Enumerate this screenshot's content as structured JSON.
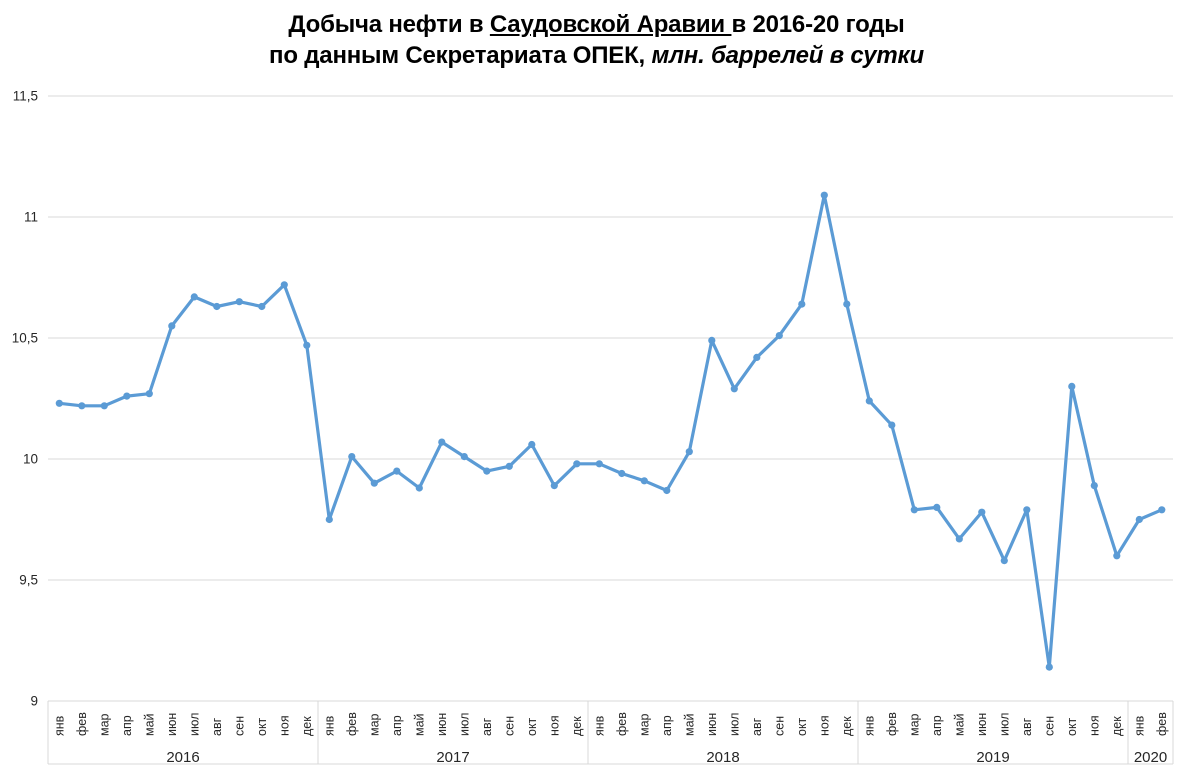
{
  "title": {
    "line1_part1": "Добыча нефти в ",
    "line1_part2_underlined": "Саудовской Аравии ",
    "line1_part3": "в 2016-20 годы",
    "line2_part1": "по данным Секретариата ОПЕК",
    "line2_part2": ", ",
    "line2_part3_italic": "млн. баррелей в сутки"
  },
  "chart_data": {
    "type": "line",
    "title": "Добыча нефти в Саудовской Аравии в 2016-20 годы по данным Секретариата ОПЕК, млн. баррелей в сутки",
    "ylabel": "млн. баррелей в сутки",
    "ylim": [
      9,
      11.5
    ],
    "y_ticks": [
      9,
      9.5,
      10,
      10.5,
      11,
      11.5
    ],
    "y_tick_labels": [
      "9",
      "9,5",
      "10",
      "10,5",
      "11",
      "11,5"
    ],
    "grid": true,
    "legend_position": "none",
    "line_color": "#5B9BD5",
    "grid_color": "#D9D9D9",
    "axis_text_color": "#262626",
    "groups": [
      {
        "year": "2016",
        "months": [
          "янв",
          "фев",
          "мар",
          "апр",
          "май",
          "июн",
          "июл",
          "авг",
          "сен",
          "окт",
          "ноя",
          "дек"
        ],
        "values": [
          10.23,
          10.22,
          10.22,
          10.26,
          10.27,
          10.55,
          10.67,
          10.63,
          10.65,
          10.63,
          10.72,
          10.47
        ]
      },
      {
        "year": "2017",
        "months": [
          "янв",
          "фев",
          "мар",
          "апр",
          "май",
          "июн",
          "июл",
          "авг",
          "сен",
          "окт",
          "ноя",
          "дек"
        ],
        "values": [
          9.75,
          10.01,
          9.9,
          9.95,
          9.88,
          10.07,
          10.01,
          9.95,
          9.97,
          10.06,
          9.89,
          9.98
        ]
      },
      {
        "year": "2018",
        "months": [
          "янв",
          "фев",
          "мар",
          "апр",
          "май",
          "июн",
          "июл",
          "авг",
          "сен",
          "окт",
          "ноя",
          "дек"
        ],
        "values": [
          9.98,
          9.94,
          9.91,
          9.87,
          10.03,
          10.49,
          10.29,
          10.42,
          10.51,
          10.64,
          11.09,
          10.64
        ]
      },
      {
        "year": "2019",
        "months": [
          "янв",
          "фев",
          "мар",
          "апр",
          "май",
          "июн",
          "июл",
          "авг",
          "сен",
          "окт",
          "ноя",
          "дек"
        ],
        "values": [
          10.24,
          10.14,
          9.79,
          9.8,
          9.67,
          9.78,
          9.58,
          9.79,
          9.14,
          10.3,
          9.89,
          9.6
        ]
      },
      {
        "year": "2020",
        "months": [
          "янв",
          "фев"
        ],
        "values": [
          9.75,
          9.79
        ]
      }
    ]
  }
}
